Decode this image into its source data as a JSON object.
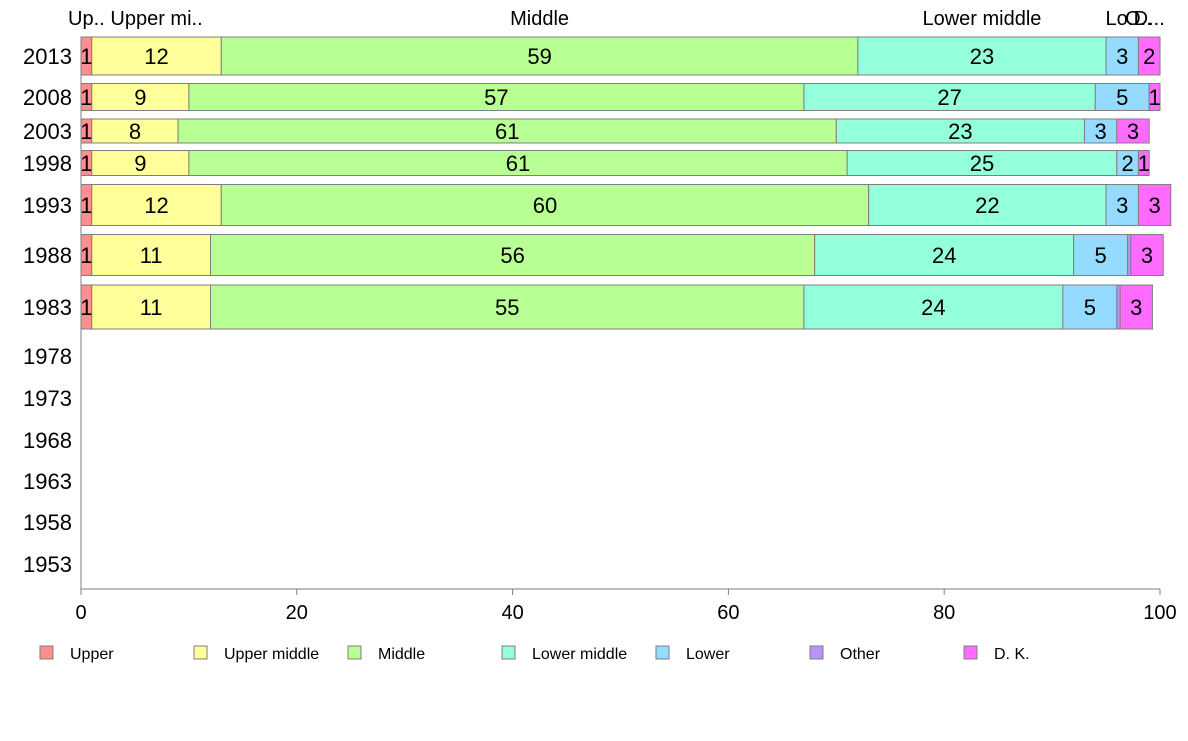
{
  "chart_data": {
    "type": "bar",
    "orientation": "horizontal",
    "stacked": true,
    "categories": [
      "2013",
      "2008",
      "2003",
      "1998",
      "1993",
      "1988",
      "1983",
      "1978",
      "1973",
      "1968",
      "1963",
      "1958",
      "1953"
    ],
    "series": [
      {
        "name": "Upper",
        "top_label": "Up..",
        "color": "#ff8f8f",
        "values": [
          1,
          1,
          1,
          1,
          1,
          1,
          1,
          null,
          null,
          null,
          null,
          null,
          null
        ],
        "labels": [
          "1",
          "1",
          "1",
          "1",
          "1",
          "1",
          "1",
          "",
          "",
          "",
          "",
          "",
          ""
        ]
      },
      {
        "name": "Upper middle",
        "top_label": "Upper mi..",
        "color": "#ffff99",
        "values": [
          12,
          9,
          8,
          9,
          12,
          11,
          11,
          null,
          null,
          null,
          null,
          null,
          null
        ],
        "labels": [
          "12",
          "9",
          "8",
          "9",
          "12",
          "11",
          "11",
          "",
          "",
          "",
          "",
          "",
          ""
        ]
      },
      {
        "name": "Middle",
        "top_label": "Middle",
        "color": "#b8ff94",
        "values": [
          59,
          57,
          61,
          61,
          60,
          56,
          55,
          null,
          null,
          null,
          null,
          null,
          null
        ],
        "labels": [
          "59",
          "57",
          "61",
          "61",
          "60",
          "56",
          "55",
          "",
          "",
          "",
          "",
          "",
          ""
        ]
      },
      {
        "name": "Lower middle",
        "top_label": "Lower middle",
        "color": "#94ffdb",
        "values": [
          23,
          27,
          23,
          25,
          22,
          24,
          24,
          null,
          null,
          null,
          null,
          null,
          null
        ],
        "labels": [
          "23",
          "27",
          "23",
          "25",
          "22",
          "24",
          "24",
          "",
          "",
          "",
          "",
          "",
          ""
        ]
      },
      {
        "name": "Lower",
        "top_label": "Lo..",
        "color": "#94dbff",
        "values": [
          3,
          5,
          3,
          2,
          3,
          5,
          5,
          null,
          null,
          null,
          null,
          null,
          null
        ],
        "labels": [
          "3",
          "5",
          "3",
          "2",
          "3",
          "5",
          "5",
          "",
          "",
          "",
          "",
          "",
          ""
        ]
      },
      {
        "name": "Other",
        "top_label": "O..",
        "color": "#b894ff",
        "values": [
          0,
          0,
          0,
          0,
          0,
          0.3,
          0.3,
          null,
          null,
          null,
          null,
          null,
          null
        ],
        "labels": [
          "",
          "",
          "",
          "",
          "",
          "",
          "",
          "",
          "",
          "",
          "",
          "",
          ""
        ]
      },
      {
        "name": "D. K.",
        "top_label": "D...",
        "color": "#ff6bff",
        "values": [
          2,
          1,
          3,
          1,
          3,
          3,
          3,
          null,
          null,
          null,
          null,
          null,
          null
        ],
        "labels": [
          "2",
          "1",
          "3",
          "1",
          "3",
          "3",
          "3",
          "",
          "",
          "",
          "",
          "",
          ""
        ]
      }
    ],
    "xlim": [
      0,
      100
    ],
    "xticks": [
      "0",
      "20",
      "40",
      "60",
      "80",
      "100"
    ],
    "title": "",
    "xlabel": "",
    "ylabel": "",
    "legend": "bottom",
    "grid": false
  }
}
